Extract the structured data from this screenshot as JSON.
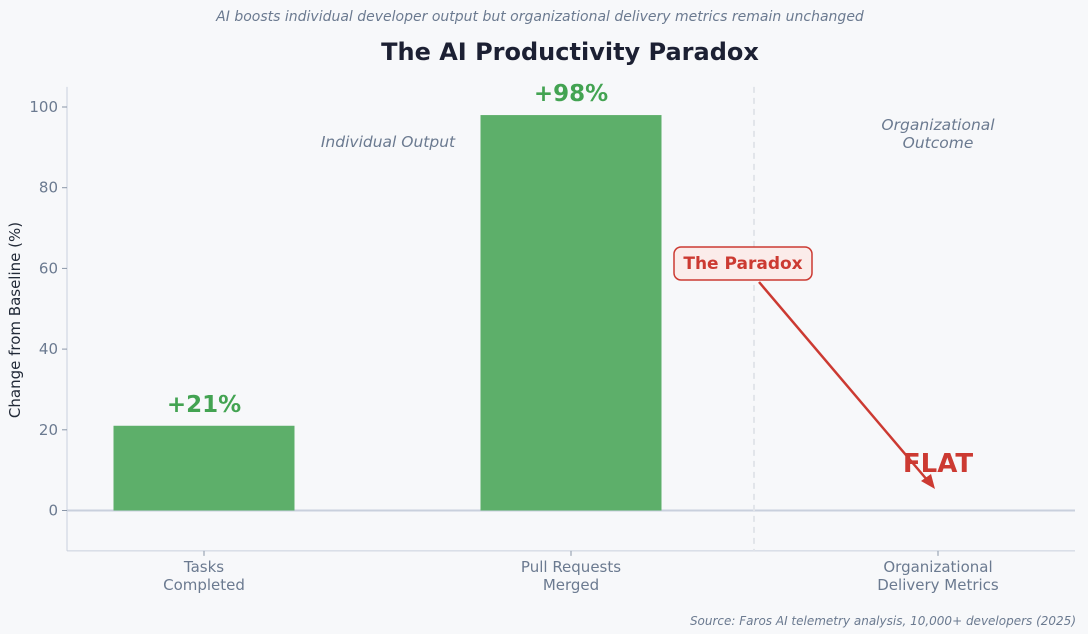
{
  "chart_data": {
    "type": "bar",
    "subtitle": "AI boosts individual developer output but organizational delivery metrics remain unchanged",
    "title": "The AI Productivity Paradox",
    "ylabel": "Change from Baseline (%)",
    "xlabel": "",
    "ylim": [
      -10,
      105
    ],
    "yticks": [
      0,
      20,
      40,
      60,
      80,
      100
    ],
    "categories": [
      "Tasks\nCompleted",
      "Pull Requests\nMerged",
      "Organizational\nDelivery Metrics"
    ],
    "values": [
      21,
      98,
      0
    ],
    "data_labels": [
      "+21%",
      "+98%",
      "FLAT"
    ],
    "colors": {
      "bar": "#5daf6a",
      "data_label": "#43a352",
      "highlight": "#cc3a32",
      "axis": "#c9d0dd",
      "divider": "#e2e5ea"
    },
    "regions": [
      "Individual Output",
      "Organizational\nOutcome"
    ],
    "annotation": "The Paradox",
    "source": "Source: Faros AI telemetry analysis, 10,000+ developers (2025)",
    "grid": false,
    "legend": "none"
  }
}
